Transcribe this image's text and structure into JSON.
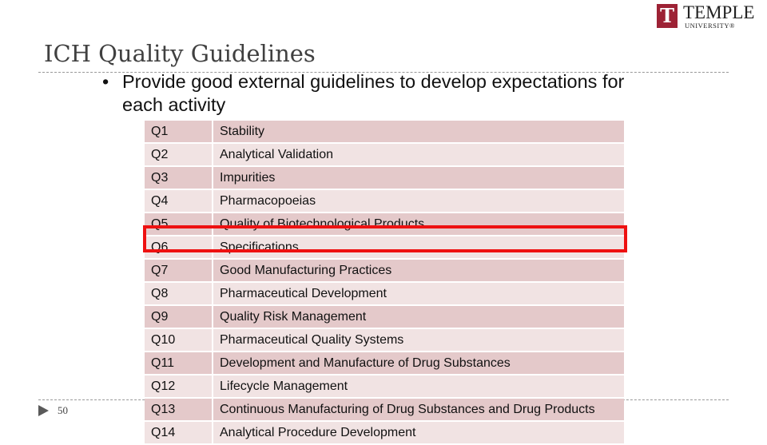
{
  "logo": {
    "name": "TEMPLE",
    "sub": "UNIVERSITY®"
  },
  "title": "ICH Quality Guidelines",
  "bullets": [
    "Provide good external guidelines to develop expectations for each activity"
  ],
  "table": {
    "rows": [
      [
        "Q1",
        "Stability"
      ],
      [
        "Q2",
        "Analytical Validation"
      ],
      [
        "Q3",
        "Impurities"
      ],
      [
        "Q4",
        "Pharmacopoeias"
      ],
      [
        "Q5",
        "Quality of Biotechnological Products"
      ],
      [
        "Q6",
        "Specifications"
      ],
      [
        "Q7",
        "Good Manufacturing Practices"
      ],
      [
        "Q8",
        "Pharmaceutical Development"
      ],
      [
        "Q9",
        "Quality Risk Management"
      ],
      [
        "Q10",
        "Pharmaceutical Quality Systems"
      ],
      [
        "Q11",
        "Development and Manufacture of Drug Substances"
      ],
      [
        "Q12",
        "Lifecycle Management"
      ],
      [
        "Q13",
        "Continuous Manufacturing of Drug Substances and Drug Products"
      ],
      [
        "Q14",
        "Analytical Procedure Development"
      ]
    ]
  },
  "page_number": "50"
}
